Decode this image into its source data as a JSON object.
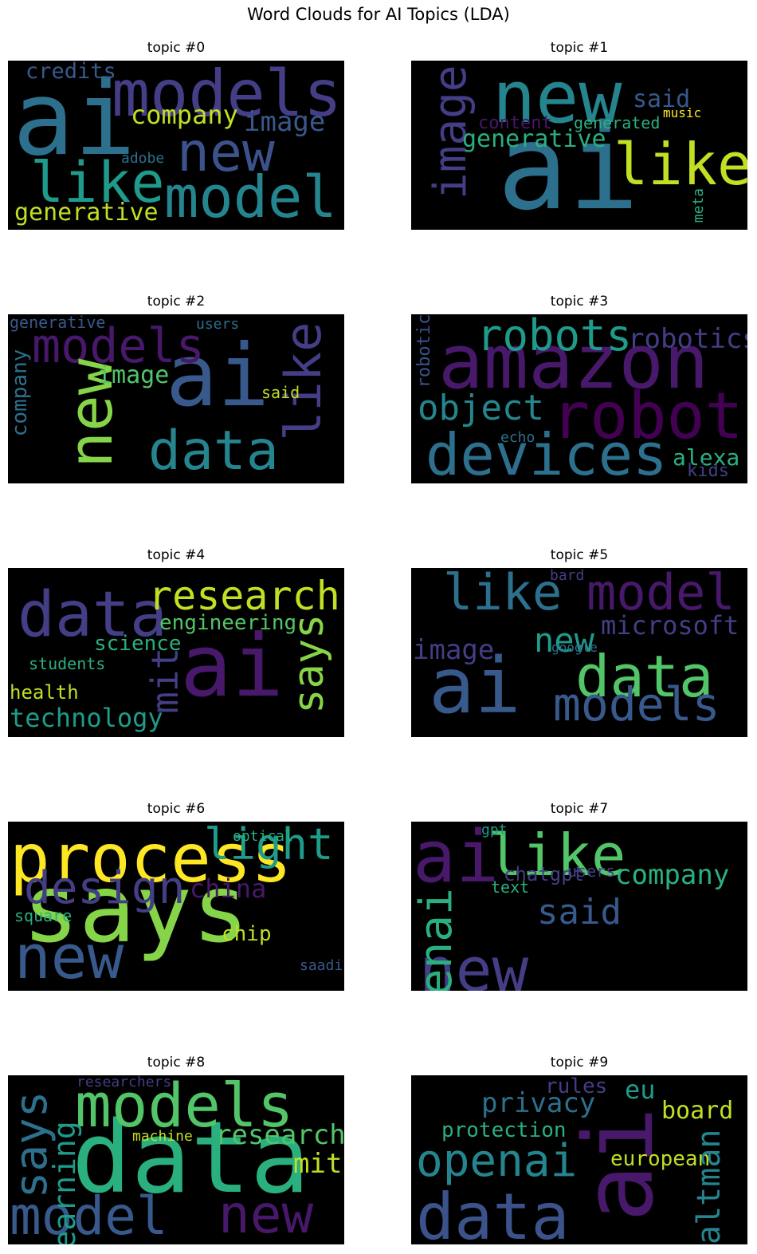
{
  "figure": {
    "title": "Word Clouds for AI Topics (LDA)"
  },
  "palette": {
    "purple": "#48186a",
    "indigo": "#433e85",
    "blue": "#38598c",
    "steel": "#2d708e",
    "teal": "#25858e",
    "sea": "#1e9b8a",
    "green": "#2ab07f",
    "lime": "#52c569",
    "yellowgreen": "#86d549",
    "yellow": "#c2df23",
    "gold": "#fde725"
  },
  "chart_data": [
    {
      "type": "wordcloud",
      "title": "topic #0",
      "words": [
        {
          "text": "ai",
          "color": "#2d708e"
        },
        {
          "text": "models",
          "color": "#433e85"
        },
        {
          "text": "like",
          "color": "#1e9b8a"
        },
        {
          "text": "model",
          "color": "#25858e"
        },
        {
          "text": "new",
          "color": "#3b528b"
        },
        {
          "text": "company",
          "color": "#c2df23"
        },
        {
          "text": "image",
          "color": "#38598c"
        },
        {
          "text": "generative",
          "color": "#c2df23"
        },
        {
          "text": "credits",
          "color": "#38598c"
        },
        {
          "text": "adobe",
          "color": "#2d708e"
        }
      ]
    },
    {
      "type": "wordcloud",
      "title": "topic #1",
      "words": [
        {
          "text": "ai",
          "color": "#2d708e"
        },
        {
          "text": "new",
          "color": "#25858e"
        },
        {
          "text": "like",
          "color": "#c2df23"
        },
        {
          "text": "image",
          "color": "#433e85"
        },
        {
          "text": "generative",
          "color": "#2ab07f"
        },
        {
          "text": "said",
          "color": "#38598c"
        },
        {
          "text": "content",
          "color": "#48186a"
        },
        {
          "text": "generated",
          "color": "#2ab07f"
        },
        {
          "text": "music",
          "color": "#fde725"
        },
        {
          "text": "meta",
          "color": "#2ab07f"
        }
      ]
    },
    {
      "type": "wordcloud",
      "title": "topic #2",
      "words": [
        {
          "text": "ai",
          "color": "#38598c"
        },
        {
          "text": "models",
          "color": "#48186a"
        },
        {
          "text": "data",
          "color": "#25858e"
        },
        {
          "text": "new",
          "color": "#86d549"
        },
        {
          "text": "like",
          "color": "#433e85"
        },
        {
          "text": "image",
          "color": "#52c569"
        },
        {
          "text": "company",
          "color": "#2d708e"
        },
        {
          "text": "said",
          "color": "#c2df23"
        },
        {
          "text": "generative",
          "color": "#38598c"
        },
        {
          "text": "users",
          "color": "#2d708e"
        }
      ]
    },
    {
      "type": "wordcloud",
      "title": "topic #3",
      "words": [
        {
          "text": "amazon",
          "color": "#48186a"
        },
        {
          "text": "robot",
          "color": "#440154"
        },
        {
          "text": "devices",
          "color": "#2d708e"
        },
        {
          "text": "robots",
          "color": "#1e9b8a"
        },
        {
          "text": "object",
          "color": "#25858e"
        },
        {
          "text": "robotics",
          "color": "#433e85"
        },
        {
          "text": "alexa",
          "color": "#2ab07f"
        },
        {
          "text": "kids",
          "color": "#433e85"
        },
        {
          "text": "robotic",
          "color": "#3b528b"
        },
        {
          "text": "echo",
          "color": "#2d708e"
        }
      ]
    },
    {
      "type": "wordcloud",
      "title": "topic #4",
      "words": [
        {
          "text": "ai",
          "color": "#48186a"
        },
        {
          "text": "data",
          "color": "#433e85"
        },
        {
          "text": "research",
          "color": "#c2df23"
        },
        {
          "text": "says",
          "color": "#86d549"
        },
        {
          "text": "mit",
          "color": "#433e85"
        },
        {
          "text": "engineering",
          "color": "#52c569"
        },
        {
          "text": "science",
          "color": "#2ab07f"
        },
        {
          "text": "technology",
          "color": "#1e9b8a"
        },
        {
          "text": "students",
          "color": "#2ab07f"
        },
        {
          "text": "health",
          "color": "#c2df23"
        }
      ]
    },
    {
      "type": "wordcloud",
      "title": "topic #5",
      "words": [
        {
          "text": "ai",
          "color": "#38598c"
        },
        {
          "text": "data",
          "color": "#52c569"
        },
        {
          "text": "models",
          "color": "#38598c"
        },
        {
          "text": "like",
          "color": "#2d708e"
        },
        {
          "text": "model",
          "color": "#48186a"
        },
        {
          "text": "new",
          "color": "#1e9b8a"
        },
        {
          "text": "image",
          "color": "#433e85"
        },
        {
          "text": "google",
          "color": "#2d708e"
        },
        {
          "text": "microsoft",
          "color": "#433e85"
        },
        {
          "text": "bard",
          "color": "#433e85"
        }
      ]
    },
    {
      "type": "wordcloud",
      "title": "topic #6",
      "words": [
        {
          "text": "says",
          "color": "#86d549"
        },
        {
          "text": "new",
          "color": "#38598c"
        },
        {
          "text": "process",
          "color": "#fde725"
        },
        {
          "text": "design",
          "color": "#433e85"
        },
        {
          "text": "light",
          "color": "#1e9b8a"
        },
        {
          "text": "china",
          "color": "#48186a"
        },
        {
          "text": "chip",
          "color": "#c2df23"
        },
        {
          "text": "square",
          "color": "#2ab07f"
        },
        {
          "text": "optical",
          "color": "#2ab07f"
        },
        {
          "text": "saadi",
          "color": "#38598c"
        }
      ]
    },
    {
      "type": "wordcloud",
      "title": "topic #7",
      "words": [
        {
          "text": "ai",
          "color": "#48186a"
        },
        {
          "text": "like",
          "color": "#52c569"
        },
        {
          "text": "new",
          "color": "#433e85"
        },
        {
          "text": "openai",
          "color": "#2ab07f"
        },
        {
          "text": "company",
          "color": "#2ab07f"
        },
        {
          "text": "said",
          "color": "#38598c"
        },
        {
          "text": "chatgpt",
          "color": "#433e85"
        },
        {
          "text": "users",
          "color": "#433e85"
        },
        {
          "text": "text",
          "color": "#2ab07f"
        },
        {
          "text": "gpt",
          "color": "#1e9b8a"
        }
      ]
    },
    {
      "type": "wordcloud",
      "title": "topic #8",
      "words": [
        {
          "text": "data",
          "color": "#2ab07f"
        },
        {
          "text": "models",
          "color": "#52c569"
        },
        {
          "text": "model",
          "color": "#38598c"
        },
        {
          "text": "new",
          "color": "#48186a"
        },
        {
          "text": "says",
          "color": "#2d708e"
        },
        {
          "text": "research",
          "color": "#52c569"
        },
        {
          "text": "learning",
          "color": "#1e9b8a"
        },
        {
          "text": "mit",
          "color": "#c2df23"
        },
        {
          "text": "machine",
          "color": "#c2df23"
        },
        {
          "text": "researchers",
          "color": "#433e85"
        }
      ]
    },
    {
      "type": "wordcloud",
      "title": "topic #9",
      "words": [
        {
          "text": "ai",
          "color": "#48186a"
        },
        {
          "text": "data",
          "color": "#3b528b"
        },
        {
          "text": "openai",
          "color": "#25858e"
        },
        {
          "text": "privacy",
          "color": "#2d708e"
        },
        {
          "text": "eu",
          "color": "#1e9b8a"
        },
        {
          "text": "rules",
          "color": "#433e85"
        },
        {
          "text": "board",
          "color": "#c2df23"
        },
        {
          "text": "protection",
          "color": "#2ab07f"
        },
        {
          "text": "european",
          "color": "#c2df23"
        },
        {
          "text": "altman",
          "color": "#25858e"
        }
      ]
    }
  ]
}
